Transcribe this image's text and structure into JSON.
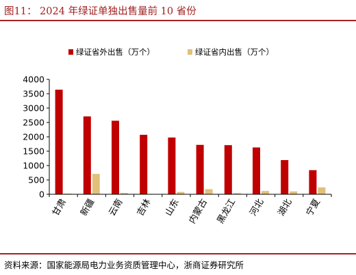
{
  "figure": {
    "title": "图11： 2024 年绿证单独出售量前 10 省份",
    "source": "资料来源：国家能源局电力业务资质管理中心，浙商证券研究所"
  },
  "chart_data": {
    "type": "bar",
    "categories": [
      "甘肃",
      "新疆",
      "云南",
      "吉林",
      "山东",
      "内蒙古",
      "黑龙江",
      "河北",
      "湖北",
      "宁夏"
    ],
    "series": [
      {
        "name": "绿证省外出售（万个）",
        "color": "#c00000",
        "values": [
          3640,
          2710,
          2560,
          2070,
          1975,
          1720,
          1710,
          1630,
          1190,
          840
        ]
      },
      {
        "name": "绿证省内出售（万个）",
        "color": "#e2c07a",
        "values": [
          25,
          710,
          45,
          0,
          80,
          180,
          40,
          115,
          100,
          240
        ]
      }
    ],
    "ylim": [
      0,
      4000
    ],
    "yticks": [
      0,
      500,
      1000,
      1500,
      2000,
      2500,
      3000,
      3500,
      4000
    ],
    "grid": false,
    "legend_position": "top"
  }
}
